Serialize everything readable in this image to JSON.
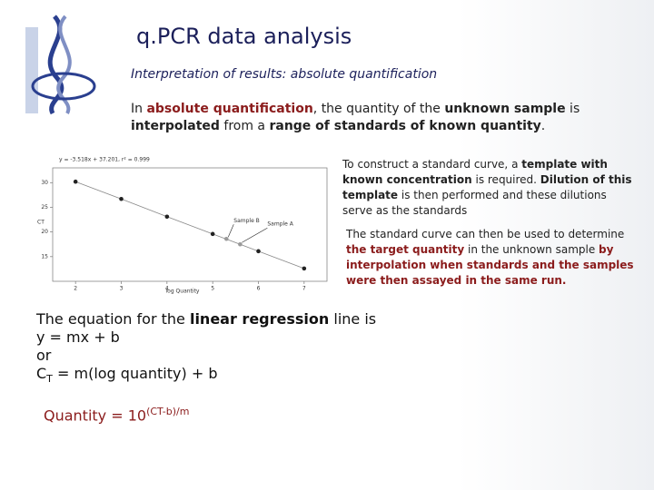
{
  "header": {
    "title": "q.PCR data analysis",
    "subtitle": "Interpretation of results: absolute quantification"
  },
  "intro": [
    "In ",
    "absolute quantification",
    ", the quantity of the ",
    "unknown sample",
    " is ",
    "interpolated",
    " from a ",
    "range of standards of known quantity",
    "."
  ],
  "note_1": [
    "To construct a standard curve, a ",
    "template with known concentration",
    " is required. ",
    "Dilution of this template",
    " is then performed and these dilutions serve as the standards"
  ],
  "note_2": [
    "The standard curve can then be used to determine ",
    "the target quantity",
    " in the unknown sample ",
    "by interpolation when standards and the samples were then assayed in the same run."
  ],
  "equation": {
    "line_1": [
      "The equation for the ",
      "linear regression",
      " line is"
    ],
    "line_2": "y = mx + b",
    "line_3": "or",
    "line_4": [
      "C",
      "T",
      " = m(log quantity) + b"
    ],
    "quantity": [
      "Quantity = 10",
      "(CT-b)/m"
    ]
  },
  "chart_data": {
    "type": "scatter",
    "title": "y = -3.518x + 37.201, r² = 0.999",
    "xlabel": "log Quantity",
    "ylabel": "CT",
    "series": [
      {
        "color": "#222222",
        "x": [
          2,
          3,
          4,
          5,
          6,
          7
        ],
        "values": [
          30.2,
          26.7,
          23.1,
          19.6,
          16.1,
          12.6
        ]
      },
      {
        "color": "#999999",
        "x": [
          5.3,
          5.6
        ],
        "values": [
          18.6,
          17.5
        ]
      }
    ],
    "annotations": [
      "Sample B",
      "Sample A"
    ],
    "xlim": [
      1.5,
      7.5
    ],
    "ylim": [
      10,
      33
    ],
    "xticks": [
      2,
      3,
      4,
      5,
      6,
      7
    ],
    "yticks": [
      15,
      20,
      25,
      30
    ]
  }
}
